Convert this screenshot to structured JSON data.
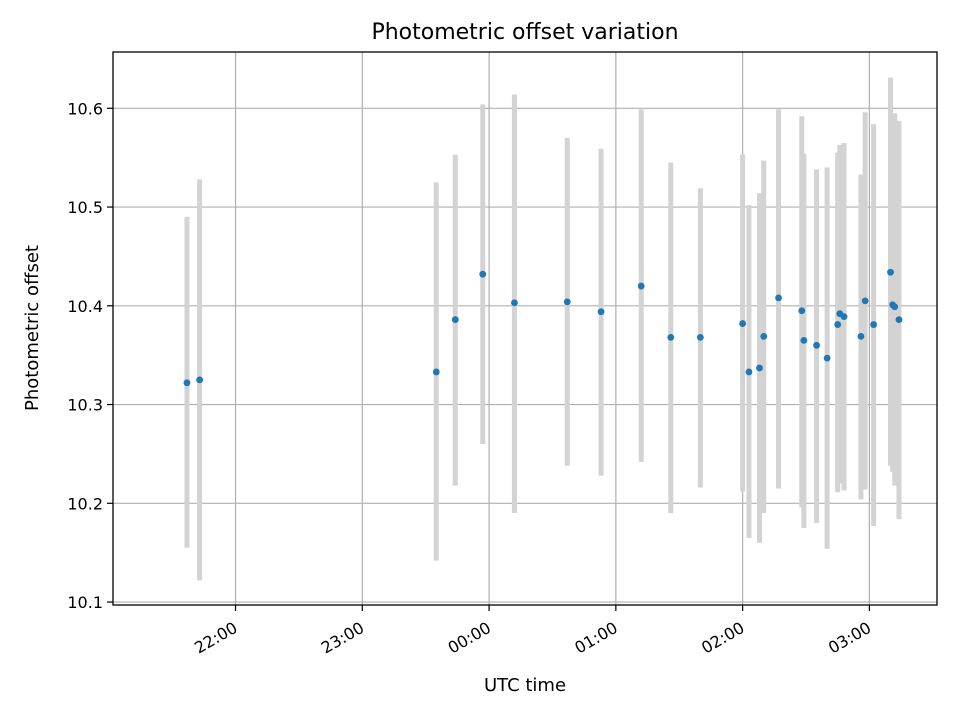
{
  "chart_data": {
    "type": "scatter",
    "title": "Photometric offset variation",
    "xlabel": "UTC time",
    "ylabel": "Photometric offset",
    "x_axis": "time",
    "xlim": [
      "21:02",
      "03:32"
    ],
    "ylim": [
      10.097,
      10.657
    ],
    "x_ticks": [
      "22:00",
      "23:00",
      "00:00",
      "01:00",
      "02:00",
      "03:00"
    ],
    "y_ticks": [
      "10.1",
      "10.2",
      "10.3",
      "10.4",
      "10.5",
      "10.6"
    ],
    "grid": true,
    "colors": {
      "point": "#1f77b4",
      "errorbar": "#d3d3d3",
      "grid": "#b0b0b0"
    },
    "points": [
      {
        "time": "21:37",
        "y": 10.322,
        "low": 10.155,
        "high": 10.49
      },
      {
        "time": "21:43",
        "y": 10.325,
        "low": 10.122,
        "high": 10.528
      },
      {
        "time": "23:35",
        "y": 10.333,
        "low": 10.142,
        "high": 10.525
      },
      {
        "time": "23:44",
        "y": 10.386,
        "low": 10.218,
        "high": 10.553
      },
      {
        "time": "23:57",
        "y": 10.432,
        "low": 10.26,
        "high": 10.604
      },
      {
        "time": "00:12",
        "y": 10.403,
        "low": 10.19,
        "high": 10.614
      },
      {
        "time": "00:37",
        "y": 10.404,
        "low": 10.238,
        "high": 10.57
      },
      {
        "time": "00:53",
        "y": 10.394,
        "low": 10.228,
        "high": 10.559
      },
      {
        "time": "01:12",
        "y": 10.42,
        "low": 10.242,
        "high": 10.599
      },
      {
        "time": "01:26",
        "y": 10.368,
        "low": 10.19,
        "high": 10.545
      },
      {
        "time": "01:40",
        "y": 10.368,
        "low": 10.216,
        "high": 10.519
      },
      {
        "time": "02:00",
        "y": 10.382,
        "low": 10.212,
        "high": 10.553
      },
      {
        "time": "02:03",
        "y": 10.333,
        "low": 10.165,
        "high": 10.502
      },
      {
        "time": "02:08",
        "y": 10.337,
        "low": 10.16,
        "high": 10.514
      },
      {
        "time": "02:10",
        "y": 10.369,
        "low": 10.19,
        "high": 10.547
      },
      {
        "time": "02:17",
        "y": 10.408,
        "low": 10.215,
        "high": 10.599
      },
      {
        "time": "02:28",
        "y": 10.395,
        "low": 10.196,
        "high": 10.592
      },
      {
        "time": "02:29",
        "y": 10.365,
        "low": 10.175,
        "high": 10.554
      },
      {
        "time": "02:35",
        "y": 10.36,
        "low": 10.18,
        "high": 10.538
      },
      {
        "time": "02:40",
        "y": 10.347,
        "low": 10.154,
        "high": 10.54
      },
      {
        "time": "02:45",
        "y": 10.381,
        "low": 10.211,
        "high": 10.555
      },
      {
        "time": "02:46",
        "y": 10.392,
        "low": 10.22,
        "high": 10.563
      },
      {
        "time": "02:48",
        "y": 10.389,
        "low": 10.213,
        "high": 10.565
      },
      {
        "time": "02:56",
        "y": 10.369,
        "low": 10.204,
        "high": 10.533
      },
      {
        "time": "02:58",
        "y": 10.405,
        "low": 10.214,
        "high": 10.596
      },
      {
        "time": "03:02",
        "y": 10.381,
        "low": 10.177,
        "high": 10.584
      },
      {
        "time": "03:10",
        "y": 10.434,
        "low": 10.238,
        "high": 10.631
      },
      {
        "time": "03:11",
        "y": 10.401,
        "low": 10.232,
        "high": 10.58
      },
      {
        "time": "03:12",
        "y": 10.399,
        "low": 10.218,
        "high": 10.595
      },
      {
        "time": "03:14",
        "y": 10.386,
        "low": 10.184,
        "high": 10.587
      }
    ]
  }
}
